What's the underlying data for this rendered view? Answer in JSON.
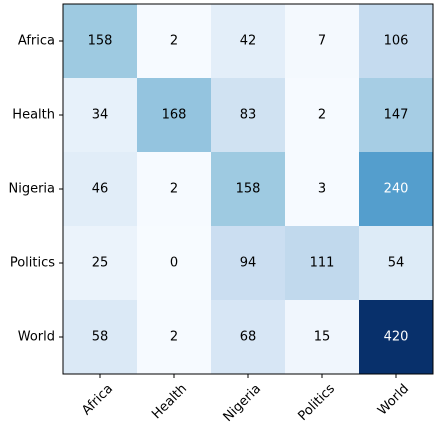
{
  "chart_data": {
    "type": "heatmap",
    "title": "",
    "xlabel": "",
    "ylabel": "",
    "x_categories": [
      "Africa",
      "Health",
      "Nigeria",
      "Politics",
      "World"
    ],
    "y_categories": [
      "Africa",
      "Health",
      "Nigeria",
      "Politics",
      "World"
    ],
    "values": [
      [
        158,
        2,
        42,
        7,
        106
      ],
      [
        34,
        168,
        83,
        2,
        147
      ],
      [
        46,
        2,
        158,
        3,
        240
      ],
      [
        25,
        0,
        94,
        111,
        54
      ],
      [
        58,
        2,
        68,
        15,
        420
      ]
    ],
    "value_range": [
      0,
      420
    ],
    "colormap": "Blues",
    "x_tick_rotation": 45,
    "grid": false,
    "legend": "none"
  }
}
